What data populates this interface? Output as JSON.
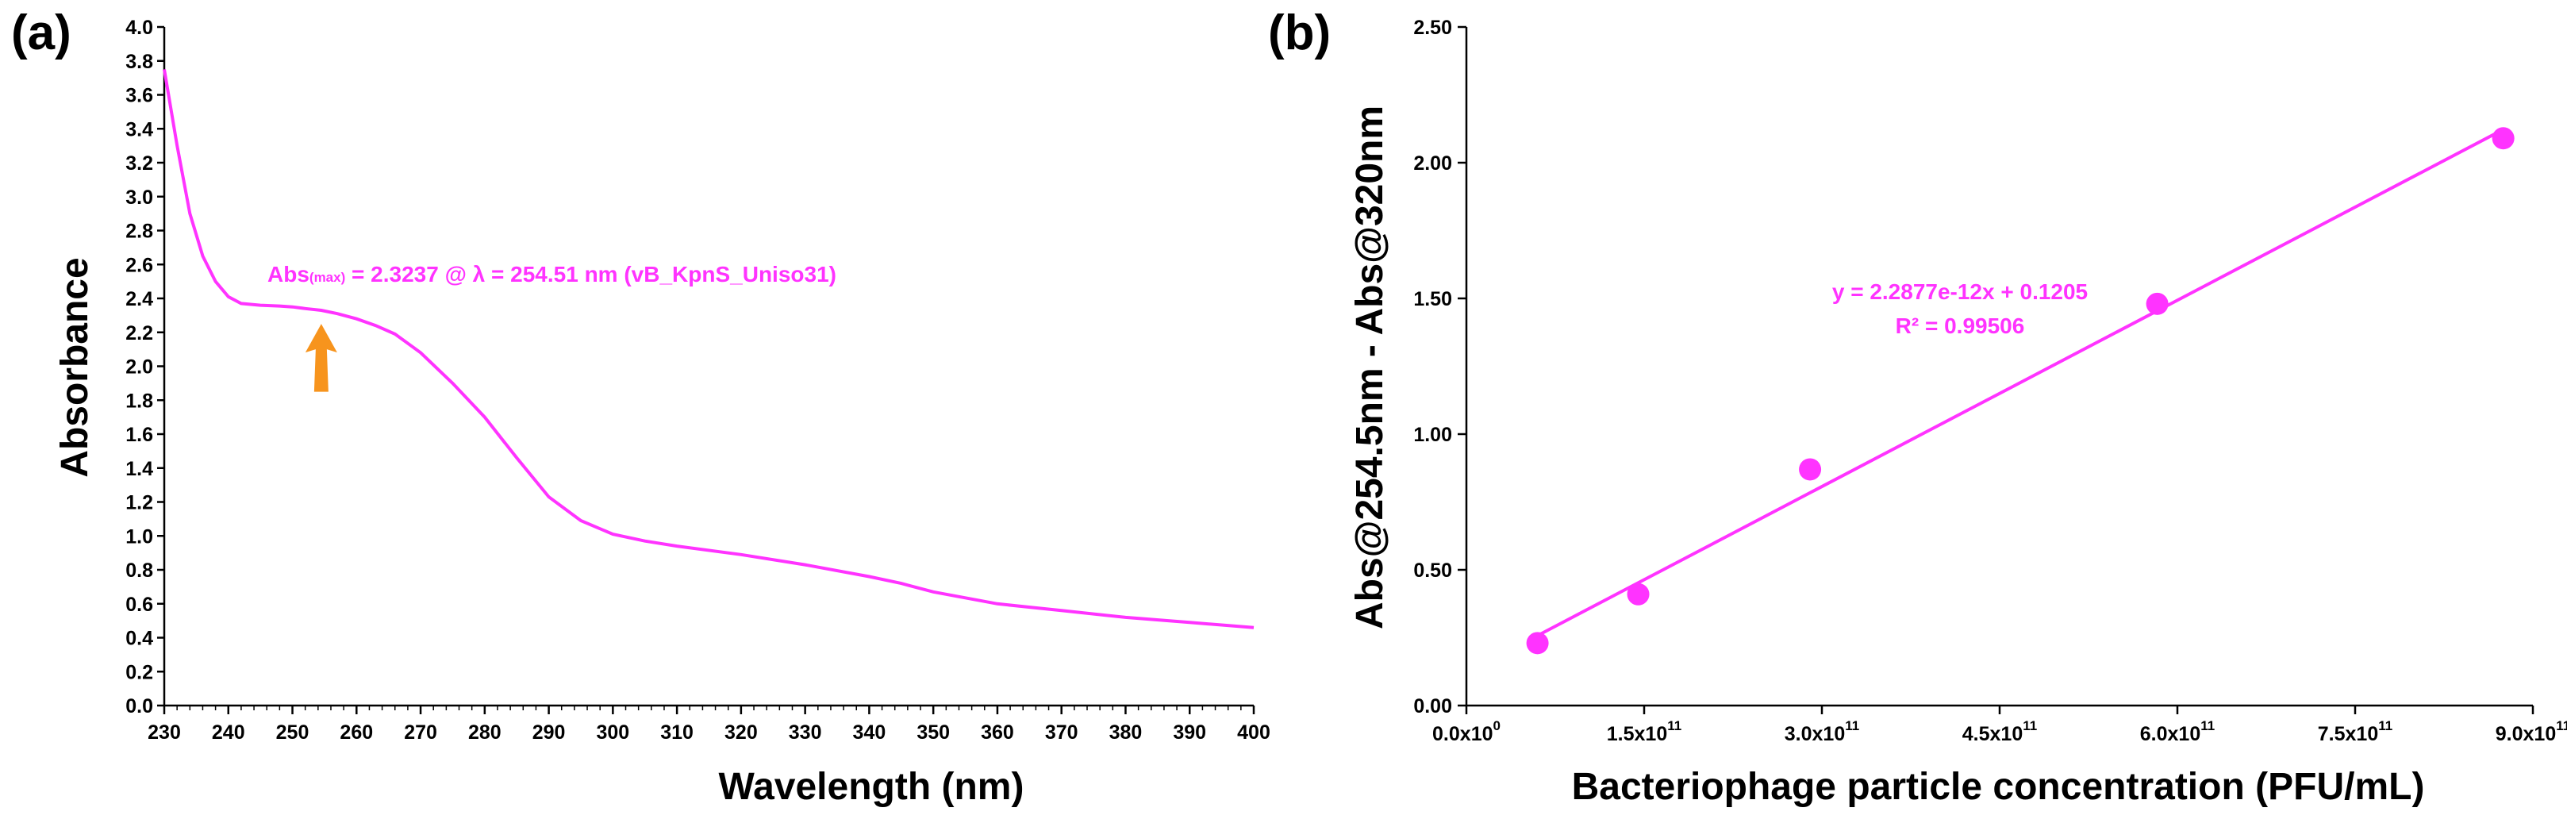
{
  "colors": {
    "series": "#ff33ff",
    "arrow": "#f7941d",
    "axis": "#000000"
  },
  "chart_data": [
    {
      "panel_label": "(a)",
      "type": "line",
      "xlabel": "Wavelength (nm)",
      "ylabel": "Absorbance",
      "xlim": [
        230,
        400
      ],
      "ylim": [
        0,
        4.0
      ],
      "x_ticks": [
        230,
        240,
        250,
        260,
        270,
        280,
        290,
        300,
        310,
        320,
        330,
        340,
        350,
        360,
        370,
        380,
        390,
        400
      ],
      "y_ticks": [
        "0.0",
        "0.2",
        "0.4",
        "0.6",
        "0.8",
        "1.0",
        "1.2",
        "1.4",
        "1.6",
        "1.8",
        "2.0",
        "2.2",
        "2.4",
        "2.6",
        "2.8",
        "3.0",
        "3.2",
        "3.4",
        "3.6",
        "3.8",
        "4.0"
      ],
      "annotation": {
        "prefix": "Abs",
        "subscript": "(max)",
        "text": " = 2.3237 @ λ = 254.51 nm (vB_KpnS_Uniso31)"
      },
      "arrow_at": {
        "x": 254.5,
        "y_tip": 2.25,
        "y_tail": 1.85
      },
      "series": [
        {
          "name": "vB_KpnS_Uniso31",
          "x": [
            230,
            232,
            234,
            236,
            238,
            240,
            242,
            245,
            248,
            250,
            252,
            254.5,
            257,
            260,
            263,
            266,
            270,
            275,
            280,
            285,
            290,
            295,
            300,
            305,
            310,
            320,
            330,
            340,
            345,
            350,
            360,
            370,
            380,
            390,
            400
          ],
          "y": [
            3.75,
            3.3,
            2.9,
            2.65,
            2.5,
            2.41,
            2.37,
            2.36,
            2.355,
            2.35,
            2.34,
            2.33,
            2.31,
            2.28,
            2.24,
            2.19,
            2.08,
            1.9,
            1.7,
            1.46,
            1.23,
            1.09,
            1.01,
            0.97,
            0.94,
            0.89,
            0.83,
            0.76,
            0.72,
            0.67,
            0.6,
            0.56,
            0.52,
            0.49,
            0.46
          ]
        }
      ]
    },
    {
      "panel_label": "(b)",
      "type": "scatter",
      "xlabel": "Bacteriophage particle concentration (PFU/mL)",
      "ylabel": "Abs@254.5nm - Abs@320nm",
      "xlim": [
        0,
        900000000000
      ],
      "ylim": [
        0,
        2.5
      ],
      "x_ticks": [
        {
          "value": 0,
          "base": "0.0x10",
          "exp": "0"
        },
        {
          "value": 150000000000,
          "base": "1.5x10",
          "exp": "11"
        },
        {
          "value": 300000000000,
          "base": "3.0x10",
          "exp": "11"
        },
        {
          "value": 450000000000,
          "base": "4.5x10",
          "exp": "11"
        },
        {
          "value": 600000000000,
          "base": "6.0x10",
          "exp": "11"
        },
        {
          "value": 750000000000,
          "base": "7.5x10",
          "exp": "11"
        },
        {
          "value": 900000000000,
          "base": "9.0x10",
          "exp": "11"
        }
      ],
      "y_ticks": [
        "0.00",
        "0.50",
        "1.00",
        "1.50",
        "2.00",
        "2.50"
      ],
      "points": {
        "x": [
          60000000000,
          145000000000,
          290000000000,
          583000000000,
          875000000000
        ],
        "y": [
          0.23,
          0.41,
          0.87,
          1.48,
          2.09
        ]
      },
      "trendline": {
        "slope": 2.2877e-12,
        "intercept": 0.1205,
        "x_range": [
          60000000000,
          875000000000
        ]
      },
      "equation": "y = 2.2877e-12x + 0.1205",
      "r_squared": "R² = 0.99506"
    }
  ]
}
